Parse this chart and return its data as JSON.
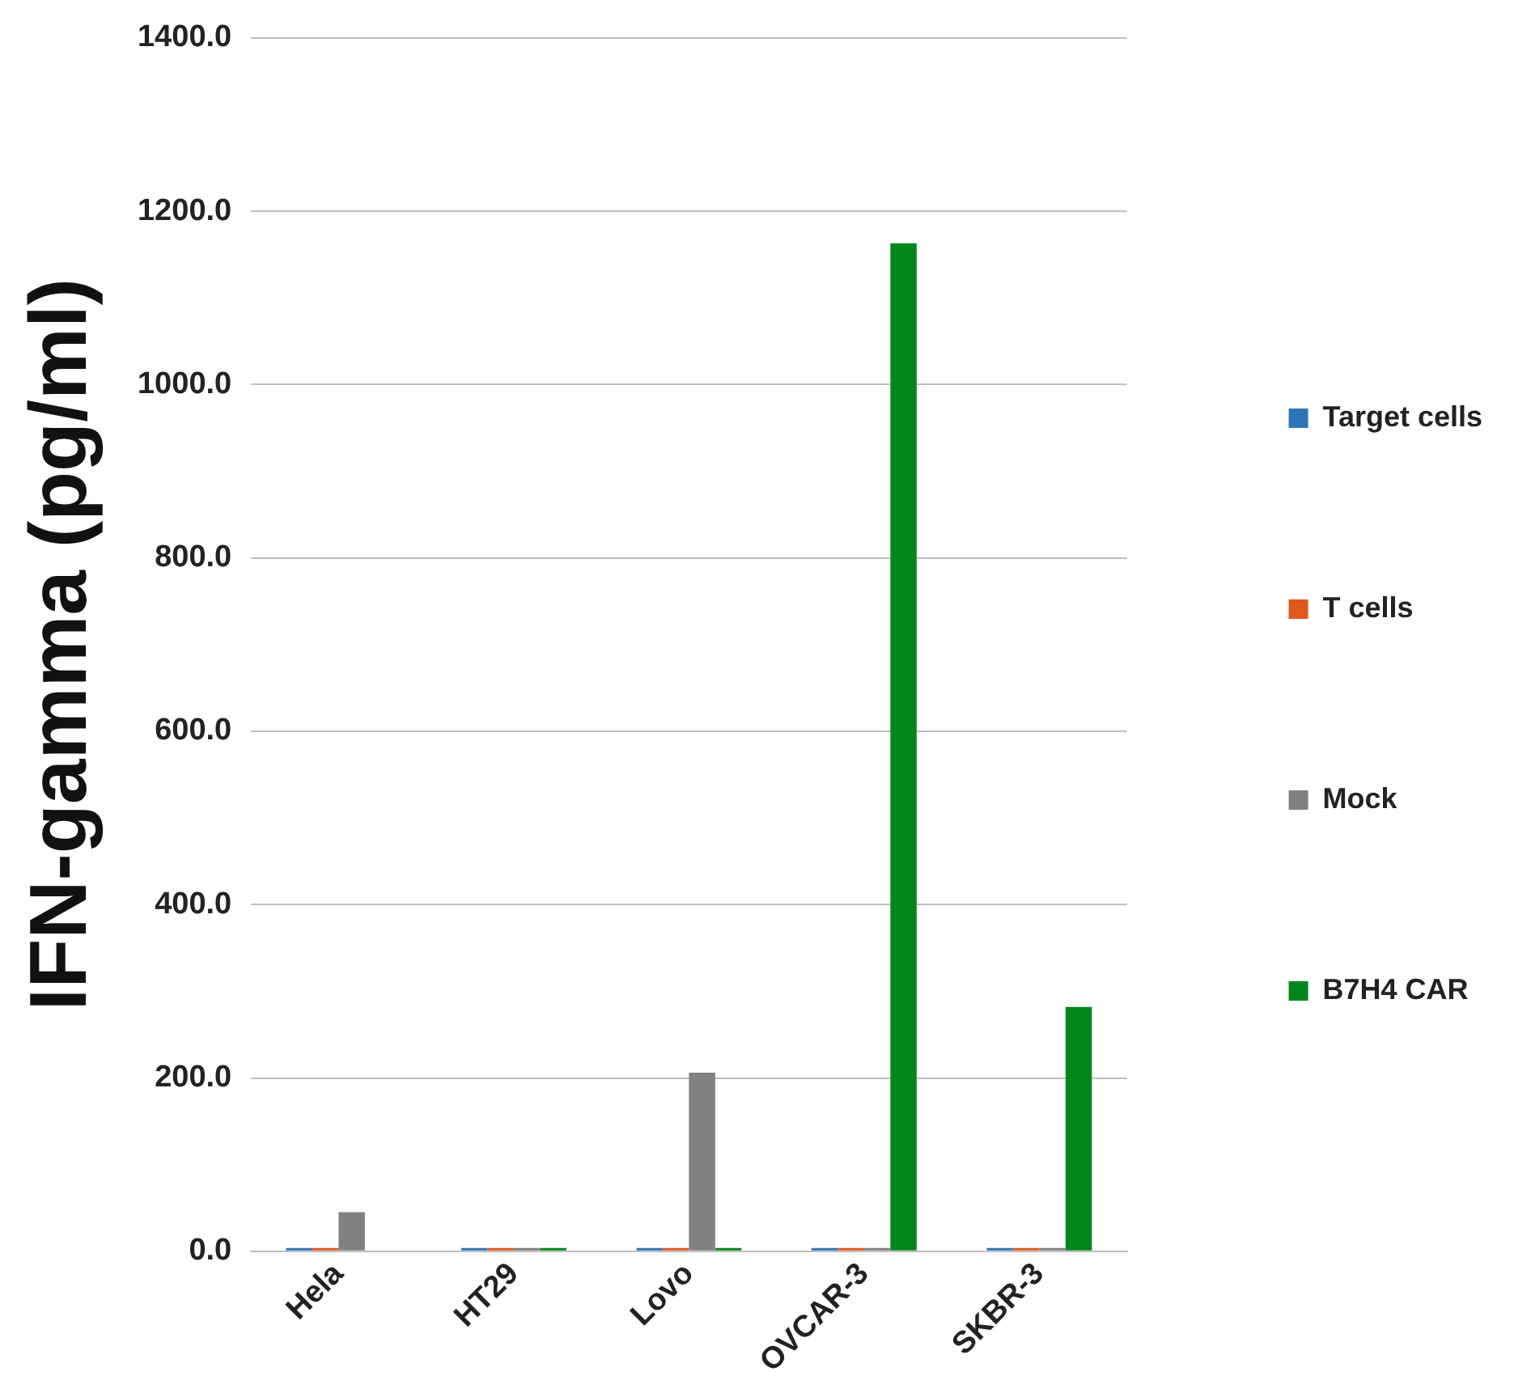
{
  "chart_data": {
    "type": "bar",
    "ylabel": "IFN-gamma (pg/ml)",
    "categories": [
      "Hela",
      "HT29",
      "Lovo",
      "OVCAR-3",
      "SKBR-3"
    ],
    "series": [
      {
        "name": "Target cells",
        "color": "#2e75b6",
        "values": [
          0,
          0,
          0,
          0,
          0
        ]
      },
      {
        "name": "T cells",
        "color": "#e0581e",
        "values": [
          0,
          0,
          0,
          0,
          0
        ]
      },
      {
        "name": "Mock",
        "color": "#808080",
        "values": [
          45,
          0,
          206,
          0,
          0
        ]
      },
      {
        "name": "B7H4 CAR",
        "color": "#00861a",
        "values": [
          null,
          0,
          0,
          1163,
          282
        ]
      }
    ],
    "ylim": [
      0,
      1400
    ],
    "yticks": [
      {
        "value": 0,
        "label": "0.0"
      },
      {
        "value": 200,
        "label": "200.0"
      },
      {
        "value": 400,
        "label": "400.0"
      },
      {
        "value": 600,
        "label": "600.0"
      },
      {
        "value": 800,
        "label": "800.0"
      },
      {
        "value": 1000,
        "label": "1000.0"
      },
      {
        "value": 1200,
        "label": "1200.0"
      },
      {
        "value": 1400,
        "label": "1400.0"
      }
    ],
    "grid": "y",
    "legend": "right"
  }
}
